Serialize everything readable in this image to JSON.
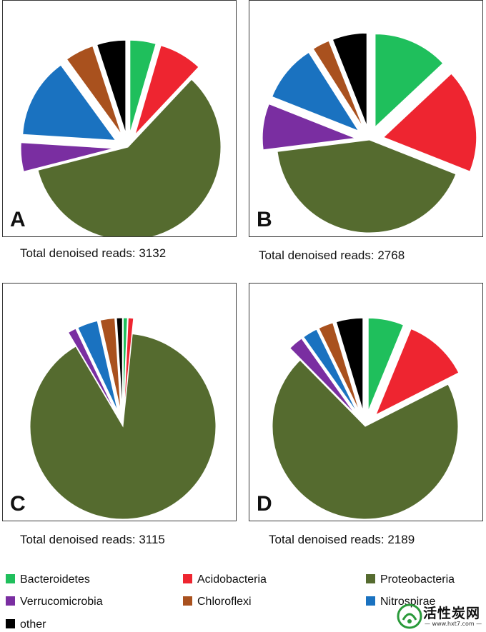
{
  "colors": {
    "Bacteroidetes": "#1fbf5c",
    "Acidobacteria": "#ee2530",
    "Proteobacteria": "#556b2f",
    "Verrucomicrobia": "#7a2ea1",
    "Chloroflexi": "#a9511e",
    "Nitrospirae": "#1a72c0",
    "other": "#000000"
  },
  "chart_data": [
    {
      "type": "pie",
      "panel_label": "A",
      "caption": "Total denoised reads: 3132",
      "slices": [
        {
          "name": "Bacteroidetes",
          "value": 4.5
        },
        {
          "name": "Acidobacteria",
          "value": 7.5
        },
        {
          "name": "Proteobacteria",
          "value": 59
        },
        {
          "name": "Verrucomicrobia",
          "value": 5
        },
        {
          "name": "Nitrospirae",
          "value": 14
        },
        {
          "name": "Chloroflexi",
          "value": 5
        },
        {
          "name": "other",
          "value": 5
        }
      ]
    },
    {
      "type": "pie",
      "panel_label": "B",
      "caption": "Total denoised reads: 2768",
      "slices": [
        {
          "name": "Bacteroidetes",
          "value": 13
        },
        {
          "name": "Acidobacteria",
          "value": 18
        },
        {
          "name": "Proteobacteria",
          "value": 42
        },
        {
          "name": "Verrucomicrobia",
          "value": 8
        },
        {
          "name": "Nitrospirae",
          "value": 10
        },
        {
          "name": "Chloroflexi",
          "value": 3
        },
        {
          "name": "other",
          "value": 6
        }
      ]
    },
    {
      "type": "pie",
      "panel_label": "C",
      "caption": "Total denoised reads:  3115",
      "slices": [
        {
          "name": "Bacteroidetes",
          "value": 0.7
        },
        {
          "name": "Acidobacteria",
          "value": 0.9
        },
        {
          "name": "Proteobacteria",
          "value": 89
        },
        {
          "name": "Verrucomicrobia",
          "value": 1.4
        },
        {
          "name": "Nitrospirae",
          "value": 3.5
        },
        {
          "name": "Chloroflexi",
          "value": 2.5
        },
        {
          "name": "other",
          "value": 1.0
        }
      ]
    },
    {
      "type": "pie",
      "panel_label": "D",
      "caption": "Total denoised reads:  2189",
      "slices": [
        {
          "name": "Bacteroidetes",
          "value": 6
        },
        {
          "name": "Acidobacteria",
          "value": 11
        },
        {
          "name": "Proteobacteria",
          "value": 68
        },
        {
          "name": "Verrucomicrobia",
          "value": 2.5
        },
        {
          "name": "Nitrospirae",
          "value": 2.5
        },
        {
          "name": "Chloroflexi",
          "value": 2.5
        },
        {
          "name": "other",
          "value": 4.5
        }
      ]
    }
  ],
  "legend": [
    {
      "name": "Bacteroidetes",
      "label": "Bacteroidetes"
    },
    {
      "name": "Acidobacteria",
      "label": "Acidobacteria"
    },
    {
      "name": "Proteobacteria",
      "label": "Proteobacteria"
    },
    {
      "name": "Verrucomicrobia",
      "label": "Verrucomicrobia"
    },
    {
      "name": "Chloroflexi",
      "label": "Chloroflexi"
    },
    {
      "name": "Nitrospirae",
      "label": "Nitrospirae"
    },
    {
      "name": "other",
      "label": "other"
    }
  ],
  "watermark": {
    "text": "活性炭网",
    "url": "— www.hxt7.com —"
  }
}
